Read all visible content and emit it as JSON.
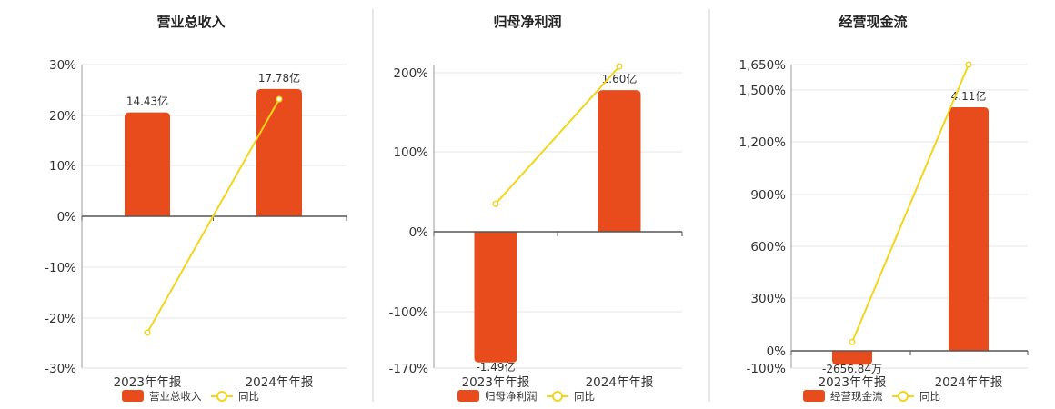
{
  "chart_data": [
    {
      "type": "bar",
      "title": "营业总收入",
      "categories": [
        "2023年年报",
        "2024年年报"
      ],
      "series": [
        {
          "name": "营业总收入",
          "type": "bar",
          "values": [
            20.6,
            25.2
          ],
          "labels": [
            "14.43亿",
            "17.78亿"
          ]
        },
        {
          "name": "同比",
          "type": "line",
          "values": [
            -22.9,
            23.2
          ]
        }
      ],
      "yticks": [
        "30%",
        "20%",
        "10%",
        "0%",
        "-10%",
        "-20%",
        "-30%"
      ],
      "ylim": [
        -30,
        30
      ],
      "grid": true,
      "legend": "bottom",
      "colors": {
        "bar": "#e84c1c",
        "line": "#f3d51d"
      }
    },
    {
      "type": "bar",
      "title": "归母净利润",
      "categories": [
        "2023年年报",
        "2024年年报"
      ],
      "series": [
        {
          "name": "归母净利润",
          "type": "bar",
          "values": [
            -163,
            178
          ],
          "labels": [
            "-1.49亿",
            "1.60亿"
          ]
        },
        {
          "name": "同比",
          "type": "line",
          "values": [
            35,
            208
          ]
        }
      ],
      "yticks": [
        "200%",
        "100%",
        "0%",
        "-100%",
        "-170%"
      ],
      "ylim": [
        -170,
        210
      ],
      "grid": true,
      "legend": "bottom",
      "colors": {
        "bar": "#e84c1c",
        "line": "#f3d51d"
      }
    },
    {
      "type": "bar",
      "title": "经营现金流",
      "categories": [
        "2023年年报",
        "2024年年报"
      ],
      "series": [
        {
          "name": "经营现金流",
          "type": "bar",
          "values": [
            -80,
            1400
          ],
          "labels": [
            "-2656.84万",
            "4.11亿"
          ]
        },
        {
          "name": "同比",
          "type": "line",
          "values": [
            50,
            1650
          ]
        }
      ],
      "yticks": [
        "1,650%",
        "1,500%",
        "1,200%",
        "900%",
        "600%",
        "300%",
        "0%",
        "-100%"
      ],
      "ylim": [
        -100,
        1650
      ],
      "grid": true,
      "legend": "bottom",
      "colors": {
        "bar": "#e84c1c",
        "line": "#f3d51d"
      }
    }
  ]
}
